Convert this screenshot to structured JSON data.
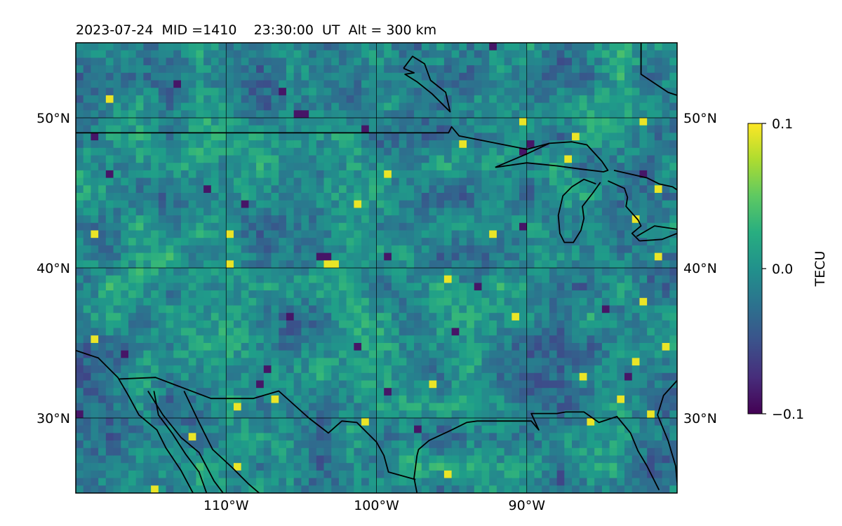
{
  "title": "2023-07-24  MID =1410    23:30:00  UT  Alt = 300 km",
  "map": {
    "lon_range": [
      -120,
      -80
    ],
    "lat_range": [
      25,
      55
    ],
    "lon_ticks": [
      {
        "value": -110,
        "label": "110°W"
      },
      {
        "value": -100,
        "label": "100°W"
      },
      {
        "value": -90,
        "label": "90°W"
      }
    ],
    "lat_ticks": [
      {
        "value": 30,
        "label": "30°N"
      },
      {
        "value": 40,
        "label": "40°N"
      },
      {
        "value": 50,
        "label": "50°N"
      }
    ],
    "grid": true,
    "field": "TEC anomaly",
    "cell_size_deg": 0.5,
    "colormap": "viridis",
    "colors": {
      "low": "#440154",
      "mid": "#21918c",
      "high": "#fde725",
      "coast": "#000000"
    }
  },
  "colorbar": {
    "label": "TECU",
    "min": -0.1,
    "max": 0.1,
    "ticks": [
      {
        "value": 0.1,
        "label": "0.1"
      },
      {
        "value": 0.0,
        "label": "0.0"
      },
      {
        "value": -0.1,
        "label": "−0.1"
      }
    ]
  },
  "coastlines": [
    {
      "name": "us-canada-border",
      "points": [
        [
          -120,
          49
        ],
        [
          -95.2,
          49
        ],
        [
          -95,
          49.4
        ],
        [
          -94.5,
          48.8
        ],
        [
          -92.5,
          48.4
        ],
        [
          -90,
          47.9
        ],
        [
          -88.5,
          48.3
        ]
      ]
    },
    {
      "name": "lake-superior",
      "points": [
        [
          -92.1,
          46.7
        ],
        [
          -90,
          47.6
        ],
        [
          -88.5,
          48.3
        ],
        [
          -87,
          48.4
        ],
        [
          -86,
          48.2
        ],
        [
          -85,
          47.1
        ],
        [
          -84.6,
          46.5
        ],
        [
          -84.9,
          46.4
        ],
        [
          -86.5,
          46.6
        ],
        [
          -88,
          46.8
        ],
        [
          -90,
          47
        ],
        [
          -92.1,
          46.7
        ]
      ]
    },
    {
      "name": "lake-michigan",
      "points": [
        [
          -85.4,
          45.6
        ],
        [
          -86.2,
          45.9
        ],
        [
          -87,
          45.4
        ],
        [
          -87.6,
          44.8
        ],
        [
          -87.9,
          43.5
        ],
        [
          -87.8,
          42.3
        ],
        [
          -87.5,
          41.7
        ],
        [
          -86.9,
          41.7
        ],
        [
          -86.4,
          42.5
        ],
        [
          -86.2,
          43.3
        ],
        [
          -86.3,
          44.1
        ],
        [
          -85.6,
          45
        ],
        [
          -85.1,
          45.7
        ]
      ]
    },
    {
      "name": "lake-huron-michigan-thumb",
      "points": [
        [
          -84.6,
          45.8
        ],
        [
          -83.5,
          45.3
        ],
        [
          -83.3,
          44.7
        ],
        [
          -83.4,
          44.1
        ],
        [
          -82.6,
          43.2
        ],
        [
          -82.4,
          42.8
        ],
        [
          -83,
          42.3
        ],
        [
          -82.5,
          41.8
        ]
      ]
    },
    {
      "name": "lake-erie",
      "points": [
        [
          -82.5,
          41.8
        ],
        [
          -81,
          41.9
        ],
        [
          -79.5,
          42.5
        ],
        [
          -81.5,
          42.8
        ],
        [
          -82.7,
          42.1
        ]
      ]
    },
    {
      "name": "ontario-shore",
      "points": [
        [
          -84.2,
          46.5
        ],
        [
          -82,
          46
        ],
        [
          -81.2,
          45.6
        ],
        [
          -80.3,
          45.4
        ],
        [
          -80,
          45.2
        ]
      ]
    },
    {
      "name": "hudson-bay",
      "points": [
        [
          -82.4,
          55
        ],
        [
          -82.4,
          52.9
        ],
        [
          -80.6,
          51.7
        ],
        [
          -80,
          51.5
        ]
      ]
    },
    {
      "name": "james-bay-island",
      "points": [
        [
          -98.2,
          53.3
        ],
        [
          -97.6,
          54.1
        ],
        [
          -96.8,
          53.6
        ],
        [
          -96.4,
          52.5
        ],
        [
          -95.4,
          51.7
        ],
        [
          -95.1,
          50.4
        ],
        [
          -96.3,
          51.6
        ],
        [
          -97.3,
          52.4
        ],
        [
          -98.1,
          52.9
        ],
        [
          -97.5,
          53
        ],
        [
          -98.2,
          53.3
        ]
      ]
    },
    {
      "name": "baja-pacific",
      "points": [
        [
          -120,
          34.5
        ],
        [
          -118.5,
          34
        ],
        [
          -117.2,
          32.7
        ],
        [
          -116.5,
          31.5
        ],
        [
          -115.8,
          30.2
        ],
        [
          -114.6,
          29.2
        ],
        [
          -114,
          28
        ],
        [
          -113,
          26.5
        ],
        [
          -112.2,
          25
        ]
      ]
    },
    {
      "name": "us-mexico-border",
      "points": [
        [
          -117.1,
          32.6
        ],
        [
          -114.7,
          32.7
        ],
        [
          -111,
          31.3
        ],
        [
          -108.2,
          31.3
        ],
        [
          -106.5,
          31.8
        ],
        [
          -104.5,
          30
        ],
        [
          -103.2,
          29
        ],
        [
          -102.3,
          29.8
        ],
        [
          -101.3,
          29.7
        ],
        [
          -100,
          28.4
        ],
        [
          -99.5,
          27.5
        ],
        [
          -99.2,
          26.4
        ],
        [
          -97.4,
          25.9
        ]
      ]
    },
    {
      "name": "gulf-of-california",
      "points": [
        [
          -114.8,
          31.8
        ],
        [
          -114.5,
          30.2
        ],
        [
          -113.6,
          29
        ],
        [
          -112.7,
          27.6
        ],
        [
          -111.8,
          26.4
        ],
        [
          -111.3,
          25
        ]
      ]
    },
    {
      "name": "baja-gulf-coast",
      "points": [
        [
          -115.2,
          31.8
        ],
        [
          -114.2,
          30.2
        ],
        [
          -113,
          28.7
        ],
        [
          -111.8,
          27.7
        ],
        [
          -110.8,
          25.8
        ],
        [
          -110.2,
          25
        ]
      ]
    },
    {
      "name": "mexico-mainland",
      "points": [
        [
          -112.8,
          31.8
        ],
        [
          -111.8,
          29.7
        ],
        [
          -110.9,
          27.9
        ],
        [
          -109.6,
          26.7
        ],
        [
          -108.5,
          25.6
        ],
        [
          -107.8,
          25
        ]
      ]
    },
    {
      "name": "texas-gulf-coast",
      "points": [
        [
          -97.3,
          25
        ],
        [
          -97.5,
          26
        ],
        [
          -97.3,
          27.5
        ],
        [
          -97.2,
          27.9
        ],
        [
          -96.5,
          28.5
        ],
        [
          -95,
          29.2
        ],
        [
          -94,
          29.7
        ],
        [
          -93.3,
          29.8
        ],
        [
          -91,
          29.8
        ],
        [
          -89.7,
          29.8
        ],
        [
          -89.2,
          29.2
        ],
        [
          -89.7,
          30.3
        ],
        [
          -88,
          30.3
        ],
        [
          -87.4,
          30.4
        ],
        [
          -86.2,
          30.4
        ],
        [
          -85.2,
          29.7
        ],
        [
          -84,
          30.1
        ],
        [
          -83.1,
          29
        ],
        [
          -82.6,
          27.8
        ],
        [
          -82,
          26.8
        ],
        [
          -81.2,
          25.2
        ]
      ]
    },
    {
      "name": "atlantic-coast",
      "points": [
        [
          -80,
          32.5
        ],
        [
          -80.9,
          31.5
        ],
        [
          -81.3,
          30.2
        ],
        [
          -80.6,
          28.5
        ],
        [
          -80.1,
          26.8
        ],
        [
          -80,
          25.7
        ]
      ]
    }
  ]
}
